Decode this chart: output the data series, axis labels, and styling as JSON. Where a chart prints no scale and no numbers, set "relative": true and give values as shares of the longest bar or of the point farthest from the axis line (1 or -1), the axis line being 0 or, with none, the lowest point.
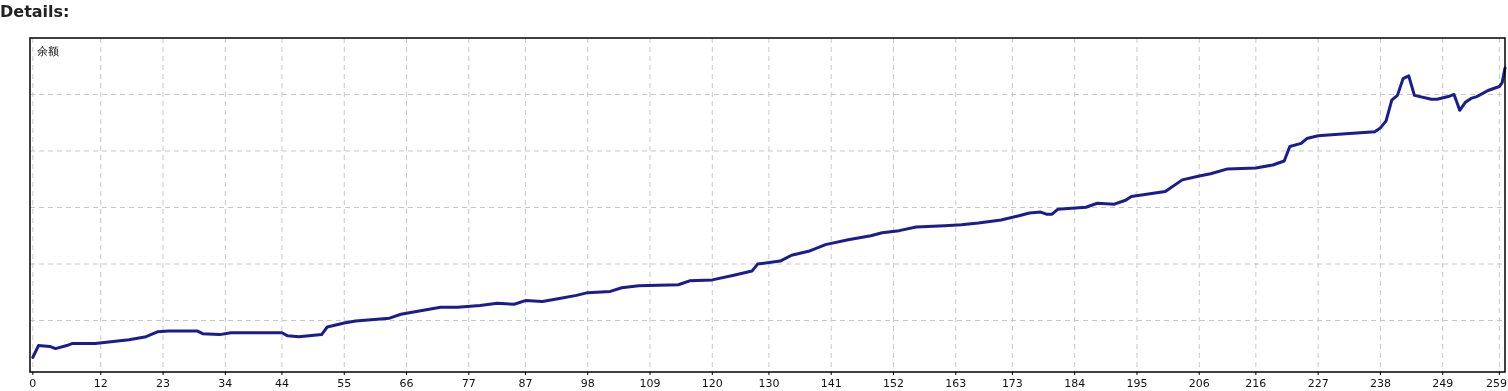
{
  "chart_data": {
    "type": "line",
    "title": "Details:",
    "ylabel": "余额",
    "relative": true,
    "grid": true,
    "marker": "none",
    "xlim": [
      -0.5,
      260
    ],
    "xticks": [
      0,
      12,
      23,
      34,
      44,
      55,
      66,
      77,
      87,
      98,
      109,
      120,
      130,
      141,
      152,
      163,
      173,
      184,
      195,
      206,
      216,
      227,
      238,
      249,
      259
    ],
    "series": [
      {
        "color": "#1c1c8e",
        "x": [
          0,
          1,
          3,
          4,
          6,
          7,
          11,
          17,
          20,
          22,
          24,
          29,
          30,
          33,
          35,
          44,
          45,
          47,
          51,
          52,
          55,
          57,
          63,
          65,
          68,
          72,
          75,
          79,
          82,
          85,
          87,
          90,
          93,
          96,
          98,
          102,
          104,
          107,
          114,
          116,
          120,
          124,
          127,
          128,
          132,
          134,
          137,
          140,
          144,
          148,
          150,
          153,
          156,
          161,
          164,
          167,
          171,
          174,
          176,
          178,
          179,
          180,
          181,
          186,
          188,
          191,
          193,
          194,
          200,
          203,
          206,
          208,
          211,
          216,
          219,
          221,
          222,
          224,
          225,
          227,
          230,
          237,
          238,
          239,
          240,
          241,
          242,
          243,
          244,
          247,
          248,
          250,
          251,
          251.5,
          252,
          253,
          254,
          255,
          257,
          259,
          259.5,
          260
        ],
        "values": [
          0.048,
          0.087,
          0.084,
          0.077,
          0.087,
          0.094,
          0.094,
          0.106,
          0.116,
          0.132,
          0.135,
          0.135,
          0.126,
          0.123,
          0.129,
          0.129,
          0.119,
          0.116,
          0.123,
          0.148,
          0.161,
          0.168,
          0.177,
          0.19,
          0.2,
          0.213,
          0.213,
          0.219,
          0.226,
          0.223,
          0.235,
          0.232,
          0.242,
          0.252,
          0.261,
          0.265,
          0.277,
          0.284,
          0.287,
          0.3,
          0.303,
          0.319,
          0.332,
          0.355,
          0.365,
          0.384,
          0.397,
          0.419,
          0.435,
          0.448,
          0.458,
          0.465,
          0.477,
          0.481,
          0.484,
          0.49,
          0.5,
          0.513,
          0.523,
          0.526,
          0.519,
          0.519,
          0.535,
          0.542,
          0.555,
          0.552,
          0.565,
          0.577,
          0.594,
          0.632,
          0.645,
          0.652,
          0.668,
          0.671,
          0.681,
          0.694,
          0.742,
          0.752,
          0.768,
          0.777,
          0.781,
          0.79,
          0.803,
          0.826,
          0.894,
          0.91,
          0.965,
          0.974,
          0.91,
          0.897,
          0.897,
          0.906,
          0.913,
          0.887,
          0.861,
          0.887,
          0.9,
          0.906,
          0.926,
          0.939,
          0.952,
          1
        ]
      }
    ]
  }
}
